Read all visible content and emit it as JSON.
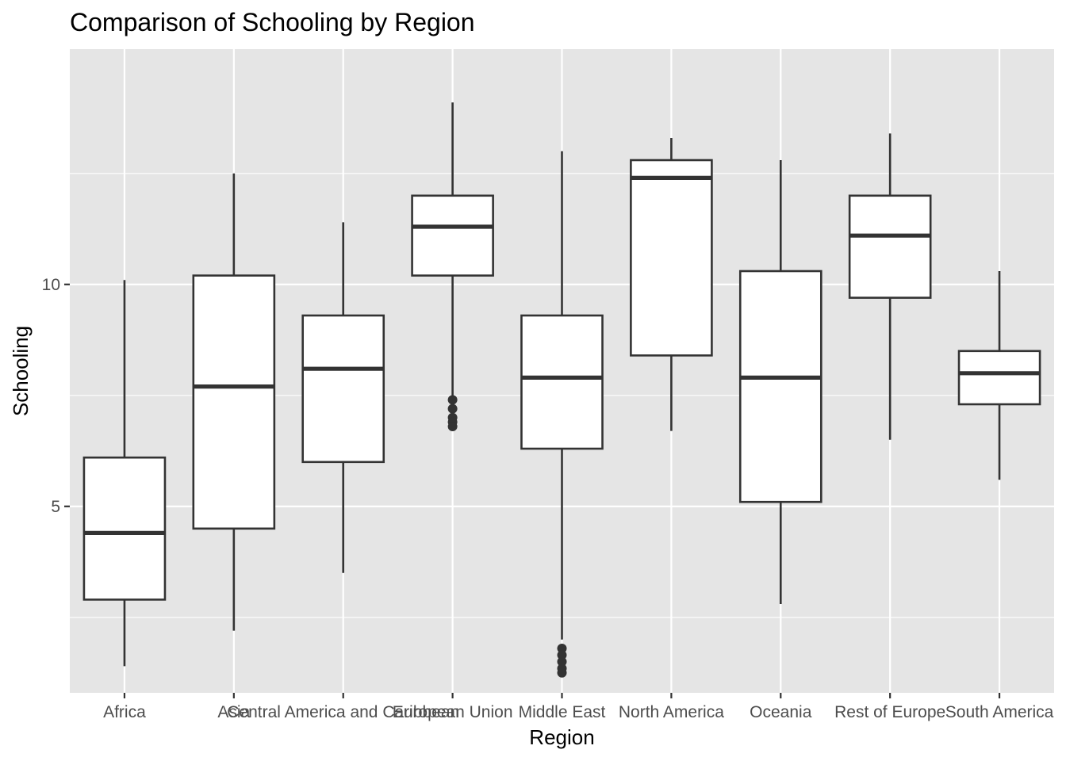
{
  "chart_data": {
    "type": "boxplot",
    "title": "Comparison of Schooling by Region",
    "xlabel": "Region",
    "ylabel": "Schooling",
    "ylim": [
      0.8,
      15.3
    ],
    "yticks": [
      5,
      10
    ],
    "ytick_labels": [
      "5",
      "10"
    ],
    "grid": true,
    "categories": [
      "Africa",
      "Asia",
      "Central America and Caribbean",
      "European Union",
      "Middle East",
      "North America",
      "Oceania",
      "Rest of Europe",
      "South America"
    ],
    "boxes": [
      {
        "category": "Africa",
        "lower_whisker": 1.4,
        "q1": 2.9,
        "median": 4.4,
        "q3": 6.1,
        "upper_whisker": 10.1,
        "outliers": []
      },
      {
        "category": "Asia",
        "lower_whisker": 2.2,
        "q1": 4.5,
        "median": 7.7,
        "q3": 10.2,
        "upper_whisker": 12.5,
        "outliers": []
      },
      {
        "category": "Central America and Caribbean",
        "lower_whisker": 3.5,
        "q1": 6.0,
        "median": 8.1,
        "q3": 9.3,
        "upper_whisker": 11.4,
        "outliers": []
      },
      {
        "category": "European Union",
        "lower_whisker": 7.5,
        "q1": 10.2,
        "median": 11.3,
        "q3": 12.0,
        "upper_whisker": 14.1,
        "outliers": [
          7.4,
          7.2,
          7.0,
          6.9,
          6.8
        ]
      },
      {
        "category": "Middle East",
        "lower_whisker": 2.0,
        "q1": 6.3,
        "median": 7.9,
        "q3": 9.3,
        "upper_whisker": 13.0,
        "outliers": [
          1.8,
          1.65,
          1.5,
          1.35,
          1.25
        ]
      },
      {
        "category": "North America",
        "lower_whisker": 6.7,
        "q1": 8.4,
        "median": 12.4,
        "q3": 12.8,
        "upper_whisker": 13.3,
        "outliers": []
      },
      {
        "category": "Oceania",
        "lower_whisker": 2.8,
        "q1": 5.1,
        "median": 7.9,
        "q3": 10.3,
        "upper_whisker": 12.8,
        "outliers": []
      },
      {
        "category": "Rest of Europe",
        "lower_whisker": 6.5,
        "q1": 9.7,
        "median": 11.1,
        "q3": 12.0,
        "upper_whisker": 13.4,
        "outliers": []
      },
      {
        "category": "South America",
        "lower_whisker": 5.6,
        "q1": 7.3,
        "median": 8.0,
        "q3": 8.5,
        "upper_whisker": 10.3,
        "outliers": []
      }
    ],
    "colors": {
      "panel_background": "#e5e5e5",
      "grid": "#ffffff",
      "box_fill": "#ffffff",
      "box_stroke": "#333333",
      "outlier": "#333333",
      "tick": "#333333"
    }
  }
}
